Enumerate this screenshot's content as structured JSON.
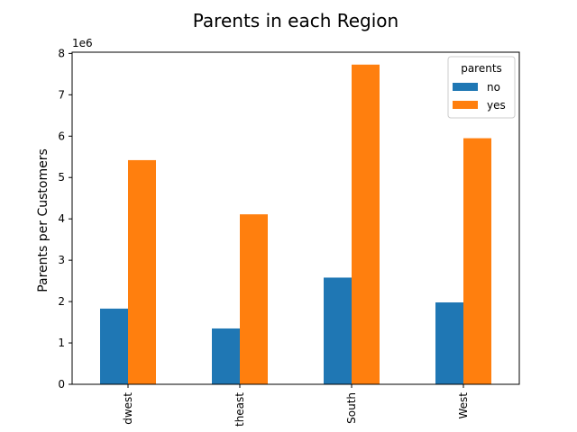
{
  "chart_data": {
    "type": "bar",
    "title": "Parents in each Region",
    "xlabel": "",
    "ylabel": "Parents per Customers",
    "y_offset_label": "1e6",
    "categories": [
      "Midwest",
      "Northeast",
      "South",
      "West"
    ],
    "category_tick_labels": [
      "dwest",
      "theast",
      "South",
      "West"
    ],
    "series": [
      {
        "name": "no",
        "color": "#1f77b4",
        "values": [
          1830000,
          1350000,
          2580000,
          1980000
        ]
      },
      {
        "name": "yes",
        "color": "#ff7f0e",
        "values": [
          5420000,
          4110000,
          7730000,
          5950000
        ]
      }
    ],
    "ylim": [
      0,
      8030000
    ],
    "yticks": [
      0,
      1,
      2,
      3,
      4,
      5,
      6,
      7,
      8
    ],
    "ytick_scale": 1000000,
    "legend": {
      "title": "parents",
      "position": "top-right"
    },
    "grid": false
  }
}
